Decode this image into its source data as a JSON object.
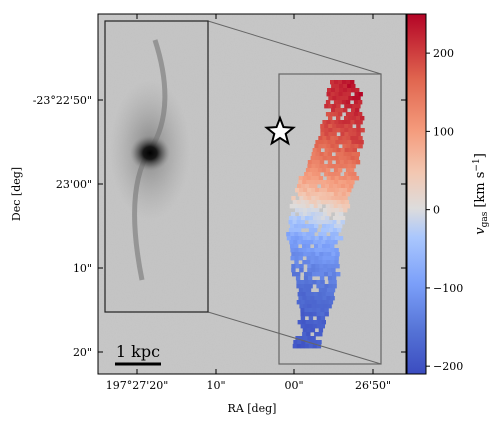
{
  "chart_data": {
    "type": "heatmap",
    "title": "",
    "xlabel": "RA [deg]",
    "ylabel": "Dec [deg]",
    "x_ticks": [
      "197°27'20\"",
      "10\"",
      "00\"",
      "26'50\""
    ],
    "y_ticks": [
      "-23°22'50\"",
      "23'00\"",
      "10\"",
      "20\""
    ],
    "colorbar": {
      "label": "v_gas [km s^-1]",
      "label_main": "v",
      "label_sub": "gas",
      "label_unit": "[km s",
      "label_sup": "−1",
      "label_close": "]",
      "range": [
        -210,
        250
      ],
      "ticks": [
        200,
        100,
        0,
        -100,
        -200
      ],
      "tick_labels": [
        "200",
        "100",
        "0",
        "−100",
        "−200"
      ],
      "colormap": "coolwarm"
    },
    "inset": {
      "description_visible": false
    },
    "scalebar_label": "1 kpc",
    "marker": "star",
    "velocity_field": [
      {
        "dec_offset": 0.0,
        "v": 235
      },
      {
        "dec_offset": 0.1,
        "v": 220
      },
      {
        "dec_offset": 0.2,
        "v": 200
      },
      {
        "dec_offset": 0.3,
        "v": 160
      },
      {
        "dec_offset": 0.4,
        "v": 90
      },
      {
        "dec_offset": 0.5,
        "v": 10
      },
      {
        "dec_offset": 0.6,
        "v": -60
      },
      {
        "dec_offset": 0.7,
        "v": -110
      },
      {
        "dec_offset": 0.8,
        "v": -150
      },
      {
        "dec_offset": 0.9,
        "v": -175
      },
      {
        "dec_offset": 1.0,
        "v": -185
      }
    ]
  }
}
